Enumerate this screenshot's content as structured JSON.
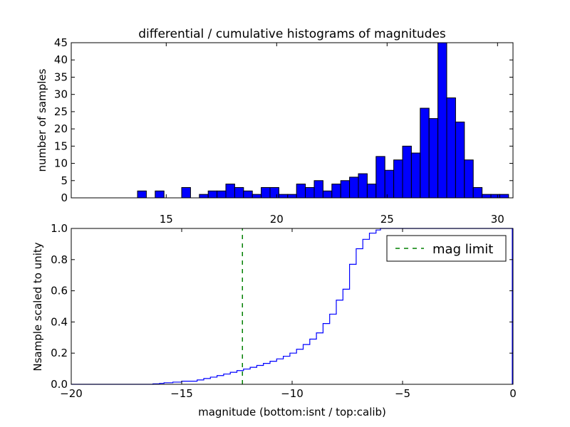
{
  "chart_data": [
    {
      "type": "bar",
      "title": "differential / cumulative histograms of magnitudes",
      "xlabel": "",
      "ylabel": "number of samples",
      "xlim": [
        10.7,
        30.7
      ],
      "ylim": [
        0,
        45
      ],
      "xticks": [
        15,
        20,
        25,
        30
      ],
      "yticks": [
        0,
        5,
        10,
        15,
        20,
        25,
        30,
        35,
        40,
        45
      ],
      "xtick_position": "top",
      "bin_width": 0.4,
      "bins_start": [
        13.7,
        14.5,
        15.7,
        16.5,
        16.9,
        17.3,
        17.7,
        18.1,
        18.5,
        18.9,
        19.3,
        19.7,
        20.1,
        20.5,
        20.9,
        21.3,
        21.7,
        22.1,
        22.5,
        22.9,
        23.3,
        23.7,
        24.1,
        24.5,
        24.9,
        25.3,
        25.7,
        26.1,
        26.5,
        26.9,
        27.3,
        27.7,
        28.1,
        28.5,
        28.9,
        29.3,
        29.7,
        30.1
      ],
      "values": [
        2,
        2,
        3,
        1,
        2,
        2,
        4,
        3,
        2,
        1,
        3,
        3,
        1,
        1,
        4,
        3,
        5,
        2,
        4,
        5,
        6,
        7,
        4,
        12,
        8,
        11,
        15,
        13,
        26,
        23,
        45,
        29,
        22,
        11,
        3,
        1,
        1,
        1
      ],
      "color": "#0000ff"
    },
    {
      "type": "line",
      "title": "",
      "xlabel": "magnitude (bottom:isnt / top:calib)",
      "ylabel": "Nsample scaled to unity",
      "xlim": [
        -20,
        0
      ],
      "ylim": [
        0,
        1.0
      ],
      "xticks": [
        -20,
        -15,
        -10,
        -5,
        0
      ],
      "yticks": [
        0.0,
        0.2,
        0.4,
        0.6,
        0.8,
        1.0
      ],
      "xtick_labels": [
        "−20",
        "−15",
        "−10",
        "−5",
        "0"
      ],
      "ytick_labels": [
        "0.0",
        "0.2",
        "0.4",
        "0.6",
        "0.8",
        "1.0"
      ],
      "series": [
        {
          "name": "",
          "color": "#0000ff",
          "step": true,
          "x": [
            -20,
            -16.3,
            -16.0,
            -15.8,
            -15.4,
            -15.0,
            -14.3,
            -14.0,
            -13.7,
            -13.4,
            -13.1,
            -12.8,
            -12.5,
            -12.2,
            -11.9,
            -11.6,
            -11.3,
            -11.0,
            -10.7,
            -10.4,
            -10.1,
            -9.8,
            -9.5,
            -9.2,
            -8.9,
            -8.6,
            -8.3,
            -8.0,
            -7.7,
            -7.4,
            -7.1,
            -6.8,
            -6.5,
            -6.2,
            -6.0,
            0
          ],
          "y": [
            0.0,
            0.003,
            0.006,
            0.01,
            0.014,
            0.02,
            0.028,
            0.037,
            0.046,
            0.056,
            0.066,
            0.077,
            0.088,
            0.098,
            0.109,
            0.121,
            0.134,
            0.148,
            0.163,
            0.18,
            0.2,
            0.225,
            0.255,
            0.29,
            0.33,
            0.39,
            0.45,
            0.54,
            0.61,
            0.77,
            0.87,
            0.93,
            0.97,
            0.99,
            1.0,
            1.0
          ]
        },
        {
          "name": "mag limit",
          "color": "#008000",
          "style": "dashed",
          "x": [
            -12.25,
            -12.25
          ],
          "y": [
            0,
            1.0
          ]
        }
      ],
      "legend_placement": "top-right"
    }
  ]
}
